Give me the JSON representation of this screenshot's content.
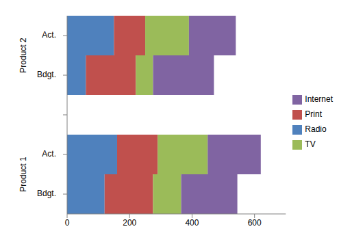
{
  "chart_data": {
    "type": "bar",
    "orientation": "horizontal",
    "stacked": true,
    "legend": "right",
    "grid": false,
    "categories": [
      "Act.",
      "Bdgt.",
      null,
      "Act.",
      "Bdgt."
    ],
    "groups": [
      "Product 2",
      "Product 2",
      null,
      "Product 1",
      "Product 1"
    ],
    "series": [
      {
        "name": "Radio",
        "color": "#4f81bd",
        "values": [
          150,
          60,
          null,
          160,
          120
        ]
      },
      {
        "name": "Print",
        "color": "#c0504d",
        "values": [
          100,
          160,
          null,
          130,
          155
        ]
      },
      {
        "name": "TV",
        "color": "#9bbb59",
        "values": [
          140,
          55,
          null,
          160,
          90
        ]
      },
      {
        "name": "Internet",
        "color": "#8064a2",
        "values": [
          150,
          195,
          null,
          170,
          180
        ]
      }
    ],
    "xlim": [
      0,
      700
    ],
    "xticks": [
      0,
      200,
      400,
      600
    ]
  }
}
